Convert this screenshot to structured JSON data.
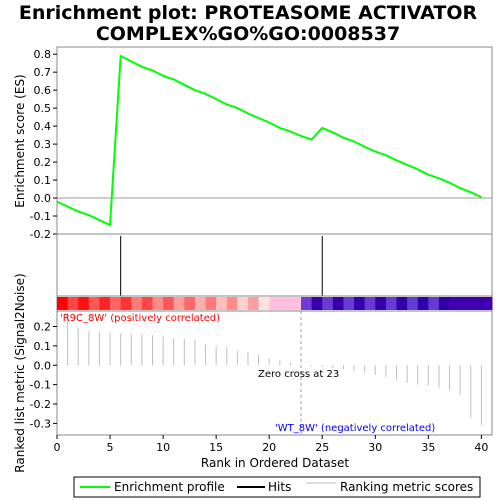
{
  "title_line1": "Enrichment plot: PROTEASOME ACTIVATOR",
  "title_line2": "COMPLEX%GO%GO:0008537",
  "colors": {
    "enrichment_line": "#00ff00",
    "hit_line": "#000000",
    "metric_bar": "#bebebe",
    "positive_text": "#ff0000",
    "negative_text": "#0000ff",
    "positive_band": "#ff0000",
    "negative_band": "#0000cc"
  },
  "legend": {
    "enrichment": "Enrichment profile",
    "hits": "Hits",
    "ranking": "Ranking metric scores"
  },
  "chart_data": {
    "type": "line",
    "x_range": [
      0,
      41
    ],
    "xlabel": "Rank in Ordered Dataset",
    "x_ticks": [
      0,
      5,
      10,
      15,
      20,
      25,
      30,
      35,
      40
    ],
    "top_panel": {
      "ylabel": "Enrichment score (ES)",
      "ylim": [
        -0.2,
        0.84
      ],
      "y_ticks": [
        -0.2,
        -0.1,
        0.0,
        0.1,
        0.2,
        0.3,
        0.4,
        0.5,
        0.6,
        0.7,
        0.8
      ],
      "y_tick_labels": [
        "-0.2",
        "-0.1",
        "0.0",
        "0.1",
        "0.2",
        "0.3",
        "0.4",
        "0.5",
        "0.6",
        "0.7",
        "0.8"
      ],
      "series": [
        {
          "x": [
            0,
            2,
            3,
            5,
            6,
            7,
            8,
            9,
            10,
            11,
            12,
            13,
            14,
            15,
            16,
            17,
            18,
            19,
            20,
            21,
            22,
            23,
            24,
            25,
            26,
            27,
            28,
            29,
            30,
            31,
            32,
            33,
            34,
            35,
            36,
            37,
            38,
            39,
            40
          ],
          "y": [
            -0.02,
            -0.075,
            -0.095,
            -0.15,
            0.79,
            0.76,
            0.73,
            0.71,
            0.68,
            0.66,
            0.63,
            0.6,
            0.58,
            0.55,
            0.52,
            0.5,
            0.47,
            0.445,
            0.42,
            0.39,
            0.37,
            0.345,
            0.325,
            0.39,
            0.365,
            0.335,
            0.315,
            0.285,
            0.258,
            0.238,
            0.21,
            0.185,
            0.16,
            0.13,
            0.11,
            0.085,
            0.055,
            0.032,
            0.005
          ]
        }
      ]
    },
    "hits": [
      6,
      25
    ],
    "bottom_panel": {
      "ylabel": "Ranked list metric (Signal2Noise)",
      "ylim": [
        -0.36,
        0.28
      ],
      "y_ticks": [
        -0.3,
        -0.2,
        -0.1,
        0.0,
        0.1,
        0.2
      ],
      "y_tick_labels": [
        "-0.3",
        "-0.2",
        "-0.1",
        "0.0",
        "0.1",
        "0.2"
      ],
      "ranks": [
        1,
        2,
        3,
        4,
        5,
        6,
        7,
        8,
        9,
        10,
        11,
        12,
        13,
        14,
        15,
        16,
        17,
        18,
        19,
        20,
        21,
        22,
        23,
        24,
        25,
        26,
        27,
        28,
        29,
        30,
        31,
        32,
        33,
        34,
        35,
        36,
        37,
        38,
        39,
        40
      ],
      "values": [
        0.27,
        0.19,
        0.175,
        0.17,
        0.168,
        0.165,
        0.163,
        0.16,
        0.155,
        0.15,
        0.14,
        0.135,
        0.13,
        0.105,
        0.1,
        0.095,
        0.075,
        0.07,
        0.055,
        0.035,
        0.025,
        0.015,
        0.0,
        -0.005,
        -0.01,
        -0.015,
        -0.02,
        -0.03,
        -0.04,
        -0.05,
        -0.06,
        -0.075,
        -0.09,
        -0.1,
        -0.105,
        -0.115,
        -0.13,
        -0.155,
        -0.27,
        -0.31
      ]
    },
    "annotations": {
      "positive": "'R9C_8W' (positively correlated)",
      "negative": "'WT_8W' (negatively correlated)",
      "zero_cross": "Zero cross at 23"
    }
  }
}
